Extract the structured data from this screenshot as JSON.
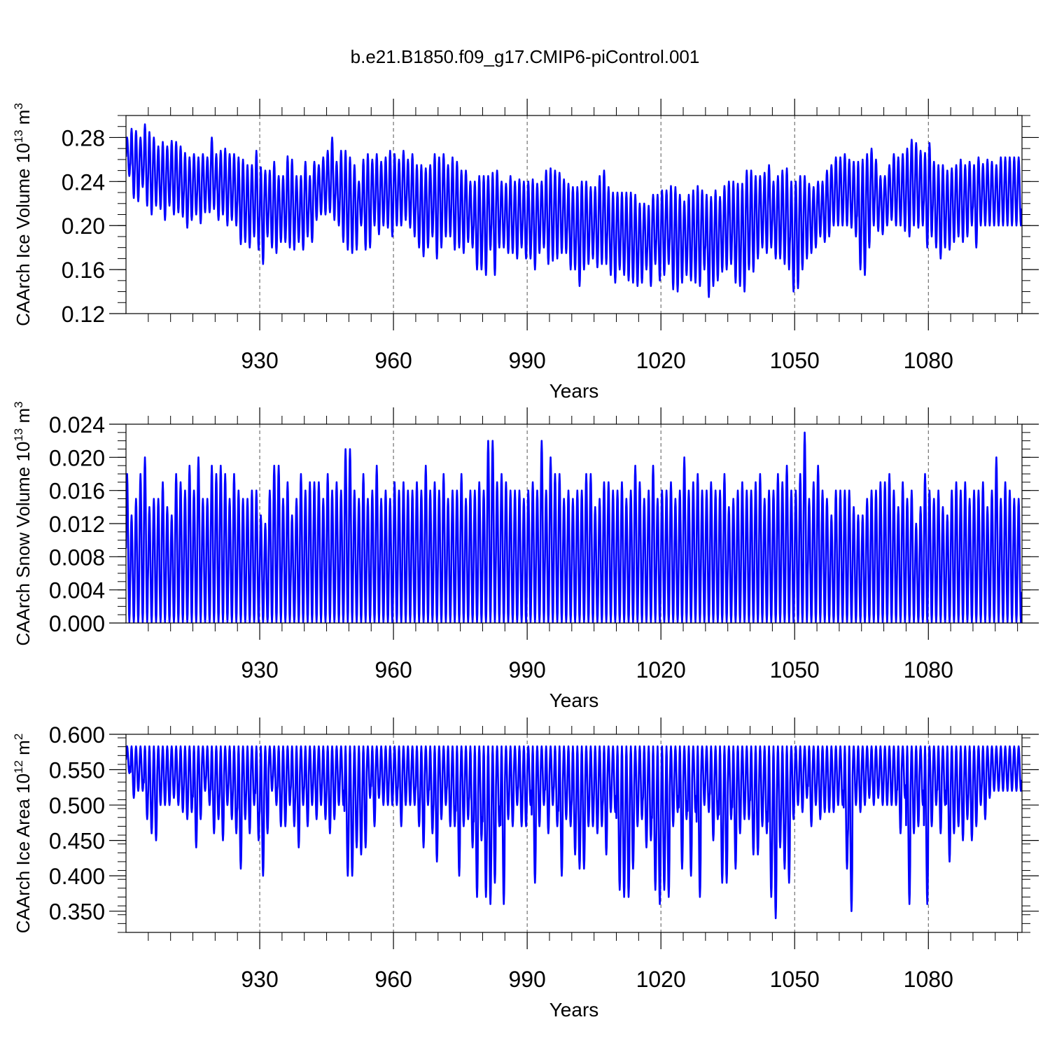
{
  "figure_title": "b.e21.B1850.f09_g17.CMIP6-piControl.001",
  "series_color": "#0000ff",
  "chart_data": [
    {
      "type": "line",
      "title": "b.e21.B1850.f09_g17.CMIP6-piControl.001",
      "ylabel": {
        "prefix": "CAArch Ice Volume 10",
        "exponent": "13",
        "unit": " m",
        "unit_exponent": "3"
      },
      "xlabel": "Years",
      "xlim": [
        900,
        1101
      ],
      "ylim": [
        0.12,
        0.3
      ],
      "xticks": [
        "930",
        "960",
        "990",
        "1020",
        "1050",
        "1080"
      ],
      "yticks": [
        "0.12",
        "0.16",
        "0.20",
        "0.24",
        "0.28"
      ],
      "grid_x": true,
      "seasonal_cycle": {
        "start_year": 900,
        "end_year": 1100,
        "max_annual": [
          0.28,
          0.288,
          0.286,
          0.28,
          0.292,
          0.285,
          0.28,
          0.272,
          0.276,
          0.272,
          0.277,
          0.276,
          0.272,
          0.266,
          0.262,
          0.265,
          0.262,
          0.265,
          0.262,
          0.28,
          0.265,
          0.268,
          0.27,
          0.265,
          0.265,
          0.262,
          0.26,
          0.255,
          0.255,
          0.268,
          0.253,
          0.25,
          0.25,
          0.258,
          0.245,
          0.245,
          0.263,
          0.26,
          0.245,
          0.245,
          0.258,
          0.245,
          0.258,
          0.255,
          0.262,
          0.268,
          0.28,
          0.258,
          0.268,
          0.268,
          0.262,
          0.255,
          0.24,
          0.26,
          0.265,
          0.26,
          0.265,
          0.258,
          0.262,
          0.268,
          0.265,
          0.26,
          0.268,
          0.26,
          0.265,
          0.255,
          0.255,
          0.252,
          0.255,
          0.265,
          0.262,
          0.265,
          0.255,
          0.262,
          0.258,
          0.25,
          0.25,
          0.24,
          0.24,
          0.245,
          0.245,
          0.245,
          0.248,
          0.25,
          0.24,
          0.238,
          0.245,
          0.24,
          0.242,
          0.24,
          0.24,
          0.242,
          0.238,
          0.24,
          0.25,
          0.252,
          0.25,
          0.248,
          0.242,
          0.238,
          0.235,
          0.235,
          0.24,
          0.24,
          0.235,
          0.235,
          0.245,
          0.25,
          0.235,
          0.23,
          0.23,
          0.23,
          0.23,
          0.23,
          0.228,
          0.22,
          0.22,
          0.218,
          0.228,
          0.228,
          0.232,
          0.232,
          0.236,
          0.235,
          0.228,
          0.222,
          0.228,
          0.232,
          0.236,
          0.232,
          0.228,
          0.226,
          0.232,
          0.226,
          0.236,
          0.24,
          0.24,
          0.238,
          0.238,
          0.25,
          0.25,
          0.245,
          0.245,
          0.248,
          0.255,
          0.24,
          0.245,
          0.25,
          0.252,
          0.24,
          0.24,
          0.245,
          0.245,
          0.238,
          0.235,
          0.24,
          0.24,
          0.25,
          0.255,
          0.262,
          0.262,
          0.265,
          0.26,
          0.258,
          0.258,
          0.26,
          0.265,
          0.27,
          0.26,
          0.245,
          0.245,
          0.255,
          0.265,
          0.262,
          0.265,
          0.27,
          0.278,
          0.275,
          0.268,
          0.266,
          0.275,
          0.258,
          0.255,
          0.255,
          0.25,
          0.252,
          0.255,
          0.26,
          0.255,
          0.258,
          0.255,
          0.262,
          0.256,
          0.26,
          0.258,
          0.255,
          0.262
        ],
        "min_annual": [
          0.245,
          0.225,
          0.222,
          0.235,
          0.218,
          0.21,
          0.218,
          0.215,
          0.205,
          0.218,
          0.21,
          0.212,
          0.208,
          0.198,
          0.205,
          0.21,
          0.202,
          0.212,
          0.212,
          0.215,
          0.205,
          0.21,
          0.2,
          0.205,
          0.2,
          0.183,
          0.185,
          0.18,
          0.19,
          0.178,
          0.165,
          0.19,
          0.18,
          0.175,
          0.185,
          0.185,
          0.18,
          0.178,
          0.185,
          0.178,
          0.19,
          0.185,
          0.205,
          0.21,
          0.21,
          0.212,
          0.205,
          0.2,
          0.185,
          0.178,
          0.175,
          0.178,
          0.2,
          0.178,
          0.18,
          0.2,
          0.192,
          0.2,
          0.198,
          0.19,
          0.2,
          0.2,
          0.205,
          0.198,
          0.19,
          0.18,
          0.172,
          0.18,
          0.19,
          0.17,
          0.18,
          0.19,
          0.19,
          0.178,
          0.18,
          0.175,
          0.185,
          0.18,
          0.16,
          0.16,
          0.155,
          0.178,
          0.155,
          0.18,
          0.18,
          0.175,
          0.175,
          0.17,
          0.18,
          0.17,
          0.17,
          0.16,
          0.175,
          0.18,
          0.165,
          0.168,
          0.17,
          0.175,
          0.175,
          0.16,
          0.16,
          0.145,
          0.16,
          0.165,
          0.17,
          0.162,
          0.165,
          0.165,
          0.155,
          0.148,
          0.16,
          0.155,
          0.15,
          0.148,
          0.145,
          0.148,
          0.16,
          0.145,
          0.165,
          0.15,
          0.155,
          0.165,
          0.142,
          0.14,
          0.148,
          0.155,
          0.15,
          0.148,
          0.145,
          0.16,
          0.135,
          0.145,
          0.15,
          0.158,
          0.16,
          0.165,
          0.148,
          0.145,
          0.14,
          0.16,
          0.158,
          0.17,
          0.18,
          0.175,
          0.18,
          0.17,
          0.17,
          0.165,
          0.16,
          0.14,
          0.143,
          0.16,
          0.17,
          0.175,
          0.18,
          0.19,
          0.185,
          0.19,
          0.2,
          0.2,
          0.2,
          0.2,
          0.198,
          0.19,
          0.16,
          0.155,
          0.18,
          0.2,
          0.195,
          0.192,
          0.2,
          0.205,
          0.2,
          0.2,
          0.195,
          0.19,
          0.2,
          0.198,
          0.2,
          0.18,
          0.19,
          0.18,
          0.17,
          0.18,
          0.178,
          0.185,
          0.19,
          0.185,
          0.19,
          0.2,
          0.18,
          0.2,
          0.2
        ]
      }
    },
    {
      "type": "line",
      "ylabel": {
        "prefix": "CAArch Snow Volume 10",
        "exponent": "13",
        "unit": " m",
        "unit_exponent": "3"
      },
      "xlabel": "Years",
      "xlim": [
        900,
        1101
      ],
      "ylim": [
        0.0,
        0.024
      ],
      "xticks": [
        "930",
        "960",
        "990",
        "1020",
        "1050",
        "1080"
      ],
      "yticks": [
        "0.000",
        "0.004",
        "0.008",
        "0.012",
        "0.016",
        "0.020",
        "0.024"
      ],
      "grid_x": true,
      "seasonal_cycle": {
        "start_year": 900,
        "end_year": 1100,
        "max_annual": [
          0.018,
          0.013,
          0.015,
          0.018,
          0.02,
          0.014,
          0.015,
          0.015,
          0.017,
          0.014,
          0.013,
          0.018,
          0.017,
          0.016,
          0.019,
          0.016,
          0.02,
          0.015,
          0.015,
          0.019,
          0.018,
          0.019,
          0.018,
          0.015,
          0.018,
          0.016,
          0.015,
          0.015,
          0.016,
          0.016,
          0.013,
          0.012,
          0.016,
          0.019,
          0.019,
          0.015,
          0.017,
          0.013,
          0.015,
          0.018,
          0.016,
          0.017,
          0.017,
          0.017,
          0.015,
          0.018,
          0.016,
          0.017,
          0.016,
          0.021,
          0.021,
          0.016,
          0.015,
          0.018,
          0.015,
          0.016,
          0.019,
          0.015,
          0.016,
          0.015,
          0.017,
          0.016,
          0.017,
          0.016,
          0.016,
          0.017,
          0.016,
          0.019,
          0.016,
          0.017,
          0.016,
          0.018,
          0.015,
          0.016,
          0.016,
          0.018,
          0.015,
          0.016,
          0.016,
          0.017,
          0.016,
          0.022,
          0.022,
          0.017,
          0.018,
          0.017,
          0.016,
          0.016,
          0.016,
          0.015,
          0.016,
          0.017,
          0.016,
          0.022,
          0.016,
          0.02,
          0.018,
          0.018,
          0.015,
          0.016,
          0.015,
          0.016,
          0.016,
          0.018,
          0.018,
          0.014,
          0.015,
          0.017,
          0.017,
          0.016,
          0.016,
          0.017,
          0.015,
          0.016,
          0.019,
          0.017,
          0.015,
          0.016,
          0.019,
          0.015,
          0.016,
          0.016,
          0.017,
          0.015,
          0.016,
          0.02,
          0.016,
          0.017,
          0.018,
          0.016,
          0.016,
          0.017,
          0.016,
          0.016,
          0.018,
          0.014,
          0.015,
          0.016,
          0.017,
          0.016,
          0.016,
          0.017,
          0.018,
          0.015,
          0.016,
          0.016,
          0.018,
          0.017,
          0.019,
          0.016,
          0.016,
          0.018,
          0.023,
          0.015,
          0.017,
          0.019,
          0.016,
          0.015,
          0.013,
          0.016,
          0.016,
          0.016,
          0.016,
          0.014,
          0.013,
          0.013,
          0.015,
          0.016,
          0.016,
          0.017,
          0.017,
          0.018,
          0.016,
          0.014,
          0.017,
          0.015,
          0.016,
          0.012,
          0.014,
          0.018,
          0.016,
          0.015,
          0.016,
          0.014,
          0.013,
          0.016,
          0.017,
          0.016,
          0.017,
          0.015,
          0.016,
          0.016,
          0.017,
          0.014,
          0.016,
          0.02,
          0.015,
          0.017,
          0.016,
          0.015,
          0.015,
          0.016,
          0.015,
          0.015
        ],
        "min_annual": [
          0.0
        ]
      }
    },
    {
      "type": "line",
      "ylabel": {
        "prefix": "CAArch Ice Area 10",
        "exponent": "12",
        "unit": " m",
        "unit_exponent": "2"
      },
      "xlabel": "Years",
      "xlim": [
        900,
        1101
      ],
      "ylim": [
        0.32,
        0.6
      ],
      "xticks": [
        "930",
        "960",
        "990",
        "1020",
        "1050",
        "1080"
      ],
      "yticks": [
        "0.350",
        "0.400",
        "0.450",
        "0.500",
        "0.550",
        "0.600"
      ],
      "grid_x": true,
      "seasonal_cycle": {
        "start_year": 900,
        "end_year": 1100,
        "max_annual": [
          0.583
        ],
        "min_annual": [
          0.545,
          0.51,
          0.52,
          0.52,
          0.48,
          0.46,
          0.45,
          0.5,
          0.5,
          0.5,
          0.51,
          0.5,
          0.49,
          0.48,
          0.49,
          0.44,
          0.48,
          0.52,
          0.5,
          0.46,
          0.48,
          0.45,
          0.5,
          0.48,
          0.46,
          0.41,
          0.48,
          0.46,
          0.5,
          0.45,
          0.4,
          0.46,
          0.52,
          0.5,
          0.47,
          0.47,
          0.5,
          0.47,
          0.44,
          0.5,
          0.47,
          0.5,
          0.48,
          0.5,
          0.48,
          0.46,
          0.48,
          0.5,
          0.5,
          0.4,
          0.4,
          0.44,
          0.43,
          0.44,
          0.51,
          0.47,
          0.51,
          0.5,
          0.5,
          0.5,
          0.5,
          0.47,
          0.5,
          0.5,
          0.5,
          0.47,
          0.44,
          0.5,
          0.46,
          0.42,
          0.48,
          0.5,
          0.47,
          0.47,
          0.4,
          0.47,
          0.48,
          0.44,
          0.37,
          0.45,
          0.37,
          0.36,
          0.39,
          0.47,
          0.36,
          0.48,
          0.47,
          0.5,
          0.47,
          0.47,
          0.5,
          0.39,
          0.47,
          0.5,
          0.46,
          0.5,
          0.47,
          0.4,
          0.48,
          0.47,
          0.43,
          0.41,
          0.41,
          0.47,
          0.47,
          0.46,
          0.47,
          0.43,
          0.49,
          0.49,
          0.38,
          0.37,
          0.37,
          0.41,
          0.47,
          0.48,
          0.44,
          0.45,
          0.38,
          0.36,
          0.38,
          0.37,
          0.47,
          0.49,
          0.41,
          0.48,
          0.4,
          0.49,
          0.37,
          0.5,
          0.49,
          0.45,
          0.48,
          0.39,
          0.39,
          0.48,
          0.41,
          0.46,
          0.48,
          0.48,
          0.43,
          0.43,
          0.47,
          0.46,
          0.37,
          0.34,
          0.44,
          0.41,
          0.39,
          0.48,
          0.5,
          0.49,
          0.51,
          0.47,
          0.5,
          0.48,
          0.49,
          0.49,
          0.49,
          0.5,
          0.5,
          0.41,
          0.35,
          0.5,
          0.49,
          0.5,
          0.51,
          0.5,
          0.51,
          0.5,
          0.5,
          0.5,
          0.5,
          0.46,
          0.51,
          0.36,
          0.46,
          0.47,
          0.5,
          0.36,
          0.47,
          0.5,
          0.46,
          0.5,
          0.42,
          0.46,
          0.47,
          0.45,
          0.48,
          0.45,
          0.47,
          0.5,
          0.48,
          0.51,
          0.52
        ]
      }
    }
  ]
}
